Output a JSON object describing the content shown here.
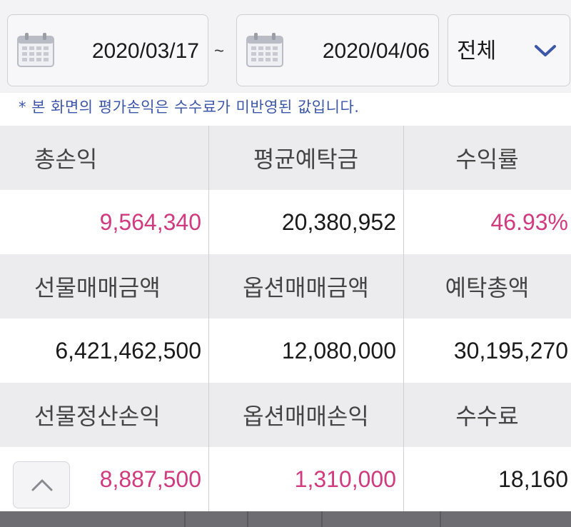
{
  "filter": {
    "start_date": "2020/03/17",
    "separator": "~",
    "end_date": "2020/04/06",
    "account_filter": "전체"
  },
  "notice": "* 본 화면의 평가손익은 수수료가 미반영된 값입니다.",
  "summary": {
    "total_pnl": {
      "label": "총손익",
      "value": "9,564,340"
    },
    "avg_deposit": {
      "label": "평균예탁금",
      "value": "20,380,952"
    },
    "return_rate": {
      "label": "수익률",
      "value": "46.93%"
    },
    "futures_trade_amount": {
      "label": "선물매매금액",
      "value": "6,421,462,500"
    },
    "options_trade_amount": {
      "label": "옵션매매금액",
      "value": "12,080,000"
    },
    "total_deposit": {
      "label": "예탁총액",
      "value": "30,195,270"
    },
    "futures_settlement_pnl": {
      "label": "선물정산손익",
      "value": "8,887,500"
    },
    "options_trade_pnl": {
      "label": "옵션매매손익",
      "value": "1,310,000"
    },
    "commission": {
      "label": "수수료",
      "value": "18,160"
    }
  },
  "colors": {
    "accent_pink": "#d13a7e",
    "notice_blue": "#3c56a8",
    "header_bg": "#ececee"
  },
  "icons": {
    "calendar": "calendar-icon",
    "dropdown": "chevron-down-icon",
    "scroll_top": "chevron-up-icon"
  }
}
